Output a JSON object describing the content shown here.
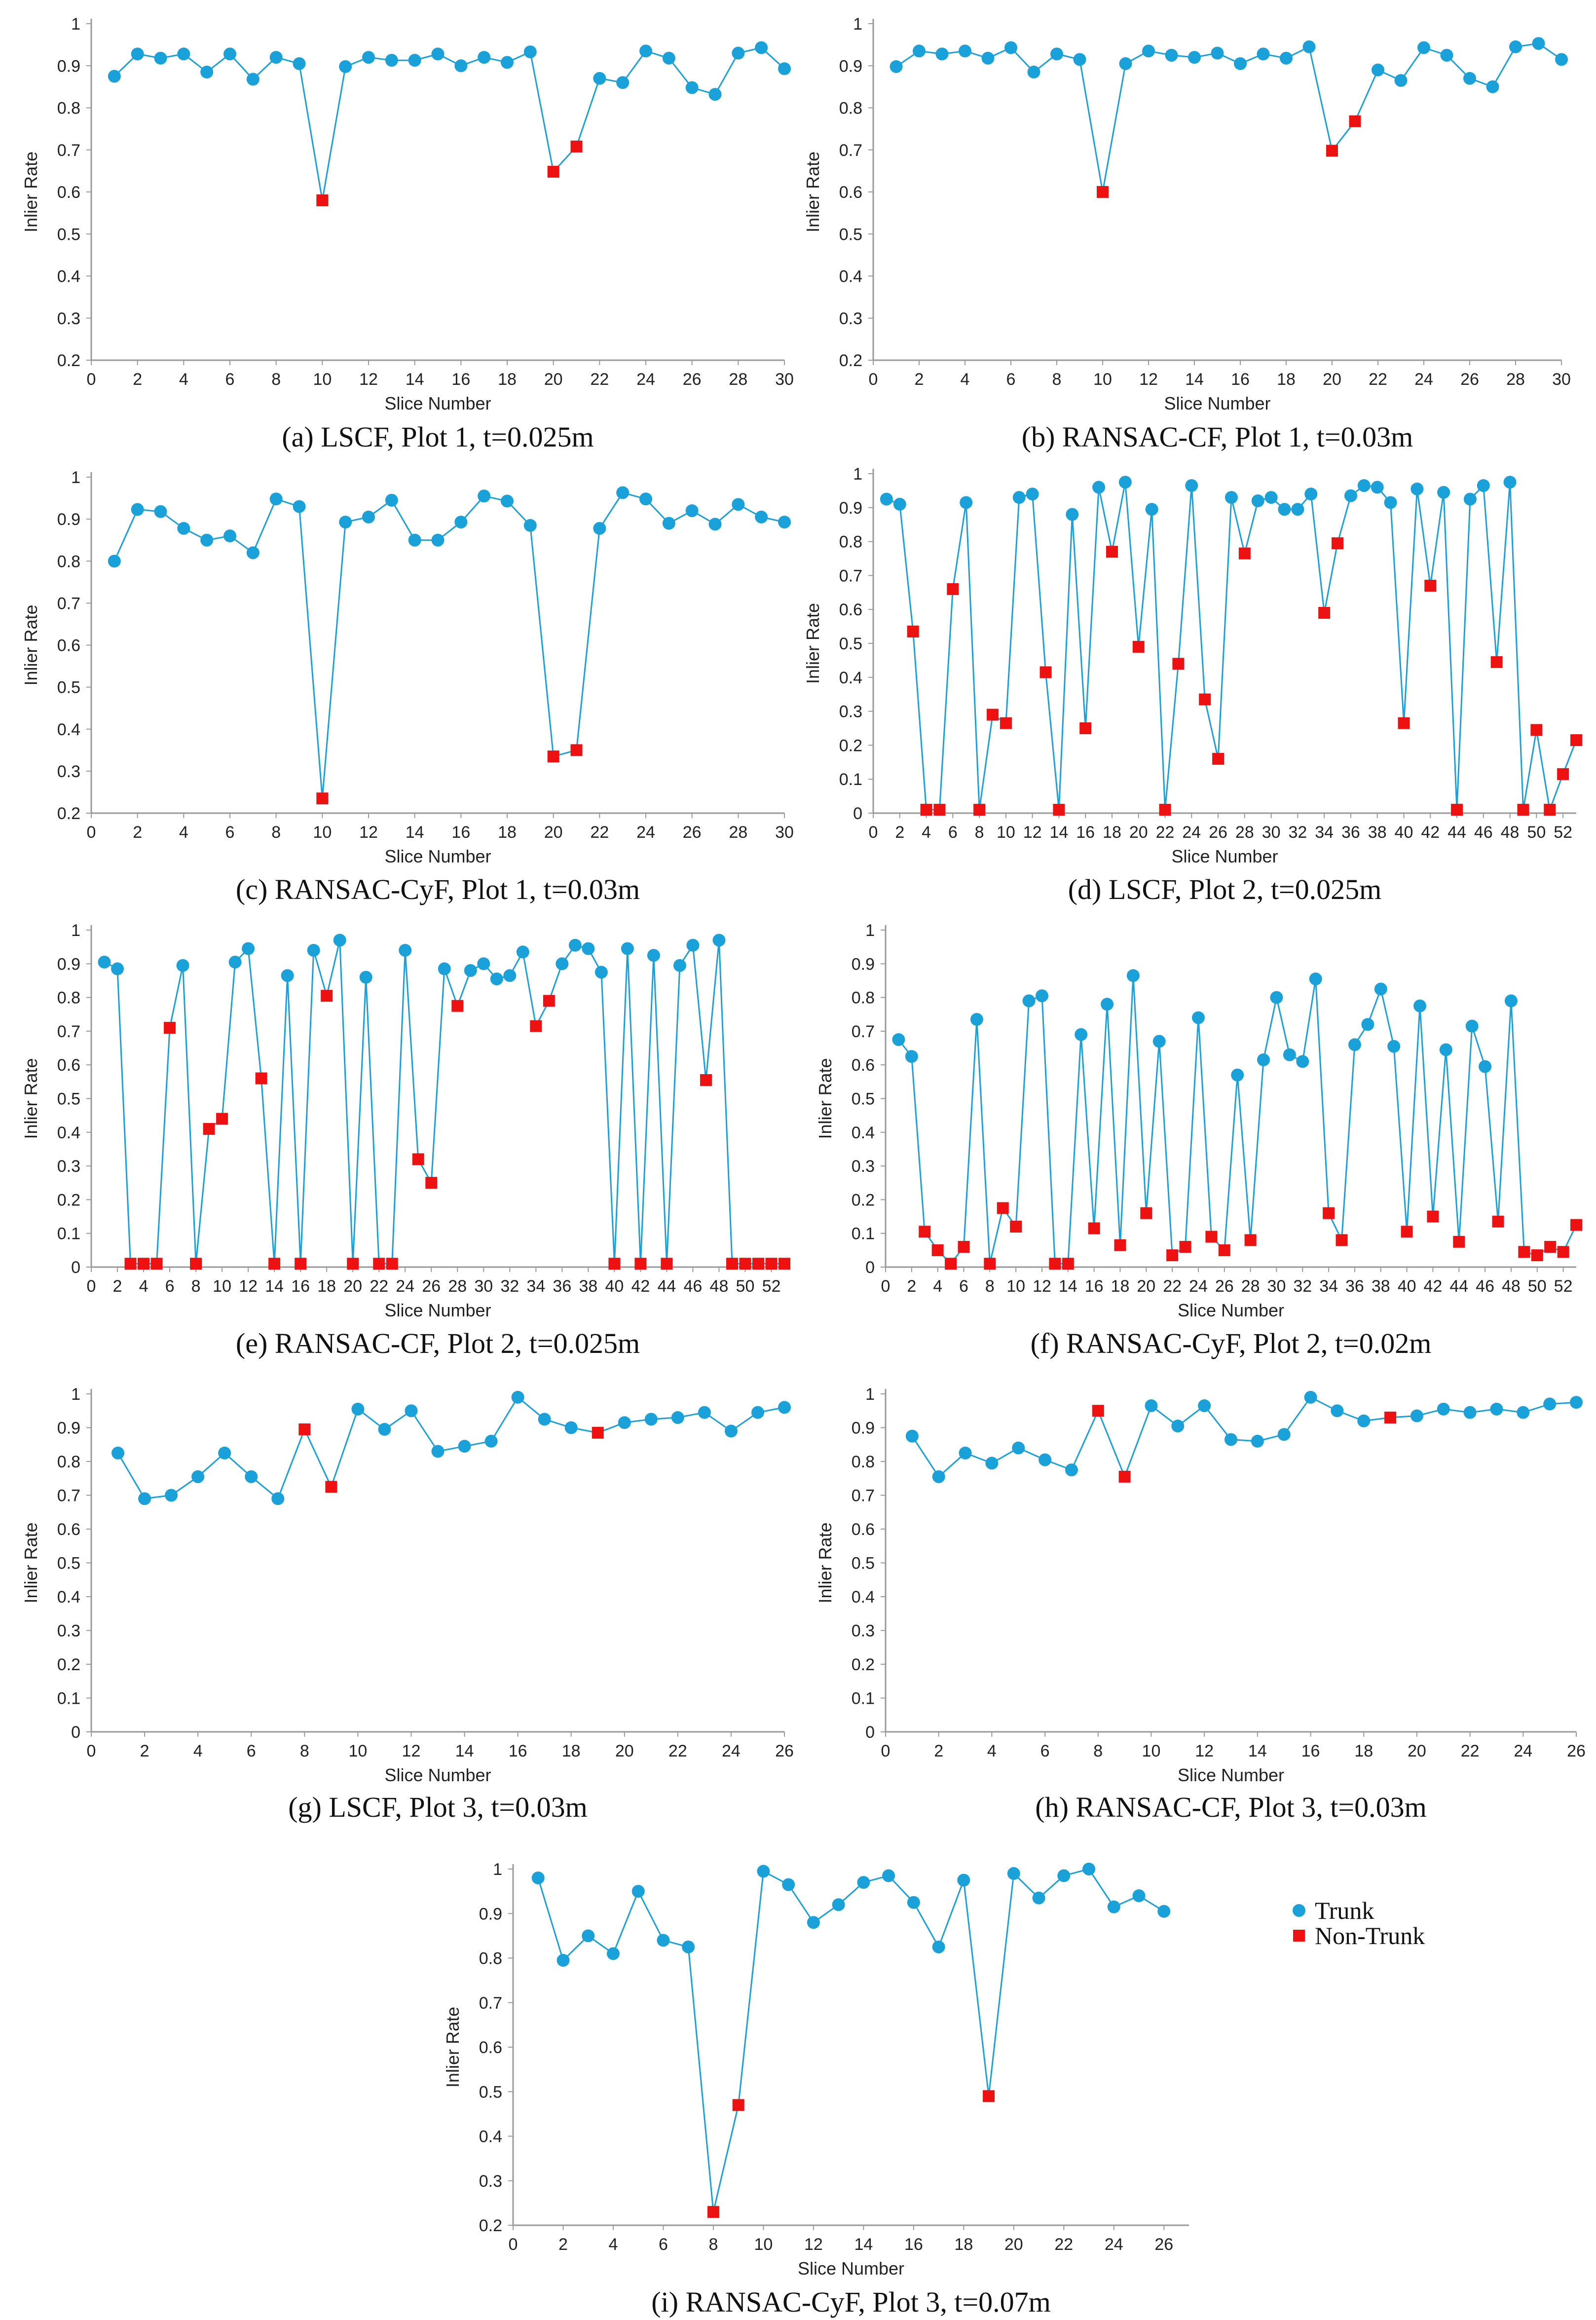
{
  "legend": {
    "trunk": "Trunk",
    "non_trunk": "Non-Trunk"
  },
  "colors": {
    "trunk": "#1aa1d9",
    "non_trunk": "#ee1111",
    "axis": "#999999"
  },
  "chart_data": [
    {
      "id": "a",
      "type": "line",
      "caption": "(a) LSCF, Plot 1, t=0.025m",
      "xlabel": "Slice Number",
      "ylabel": "Inlier Rate",
      "xlim": [
        0,
        30
      ],
      "xticks": [
        0,
        2,
        4,
        6,
        8,
        10,
        12,
        14,
        16,
        18,
        20,
        22,
        24,
        26,
        28,
        30
      ],
      "ylim": [
        0.2,
        1.0
      ],
      "yticks": [
        0.2,
        0.3,
        0.4,
        0.5,
        0.6,
        0.7,
        0.8,
        0.9,
        1
      ],
      "x": [
        1,
        2,
        3,
        4,
        5,
        6,
        7,
        8,
        9,
        10,
        11,
        12,
        13,
        14,
        15,
        16,
        17,
        18,
        19,
        20,
        21,
        22,
        23,
        24,
        25,
        26,
        27,
        28,
        29,
        30
      ],
      "y": [
        0.875,
        0.928,
        0.918,
        0.928,
        0.885,
        0.928,
        0.868,
        0.92,
        0.905,
        0.58,
        0.898,
        0.92,
        0.913,
        0.913,
        0.928,
        0.9,
        0.92,
        0.908,
        0.933,
        0.648,
        0.708,
        0.87,
        0.86,
        0.935,
        0.918,
        0.848,
        0.832,
        0.93,
        0.943,
        0.893
      ],
      "non_trunk": [
        10,
        20,
        21
      ]
    },
    {
      "id": "b",
      "type": "line",
      "caption": "(b) RANSAC-CF, Plot 1, t=0.03m",
      "xlabel": "Slice Number",
      "ylabel": "Inlier Rate",
      "xlim": [
        0,
        30
      ],
      "xticks": [
        0,
        2,
        4,
        6,
        8,
        10,
        12,
        14,
        16,
        18,
        20,
        22,
        24,
        26,
        28,
        30
      ],
      "ylim": [
        0.2,
        1.0
      ],
      "yticks": [
        0.2,
        0.3,
        0.4,
        0.5,
        0.6,
        0.7,
        0.8,
        0.9,
        1
      ],
      "x": [
        1,
        2,
        3,
        4,
        5,
        6,
        7,
        8,
        9,
        10,
        11,
        12,
        13,
        14,
        15,
        16,
        17,
        18,
        19,
        20,
        21,
        22,
        23,
        24,
        25,
        26,
        27,
        28,
        29,
        30
      ],
      "y": [
        0.898,
        0.935,
        0.928,
        0.935,
        0.918,
        0.943,
        0.885,
        0.928,
        0.915,
        0.6,
        0.905,
        0.935,
        0.925,
        0.92,
        0.93,
        0.905,
        0.928,
        0.918,
        0.945,
        0.698,
        0.768,
        0.89,
        0.865,
        0.943,
        0.925,
        0.87,
        0.85,
        0.945,
        0.953,
        0.915
      ],
      "non_trunk": [
        10,
        20,
        21
      ]
    },
    {
      "id": "c",
      "type": "line",
      "caption": "(c) RANSAC-CyF, Plot 1, t=0.03m",
      "xlabel": "Slice Number",
      "ylabel": "Inlier Rate",
      "xlim": [
        0,
        30
      ],
      "xticks": [
        0,
        2,
        4,
        6,
        8,
        10,
        12,
        14,
        16,
        18,
        20,
        22,
        24,
        26,
        28,
        30
      ],
      "ylim": [
        0.2,
        1.0
      ],
      "yticks": [
        0.2,
        0.3,
        0.4,
        0.5,
        0.6,
        0.7,
        0.8,
        0.9,
        1
      ],
      "x": [
        1,
        2,
        3,
        4,
        5,
        6,
        7,
        8,
        9,
        10,
        11,
        12,
        13,
        14,
        15,
        16,
        17,
        18,
        19,
        20,
        21,
        22,
        23,
        24,
        25,
        26,
        27,
        28,
        29,
        30
      ],
      "y": [
        0.8,
        0.923,
        0.918,
        0.878,
        0.85,
        0.86,
        0.82,
        0.948,
        0.93,
        0.235,
        0.893,
        0.905,
        0.945,
        0.85,
        0.85,
        0.893,
        0.955,
        0.943,
        0.885,
        0.335,
        0.35,
        0.878,
        0.963,
        0.948,
        0.89,
        0.92,
        0.888,
        0.935,
        0.905,
        0.893
      ],
      "non_trunk": [
        10,
        20,
        21
      ]
    },
    {
      "id": "d",
      "type": "line",
      "caption": "(d) LSCF, Plot 2, t=0.025m",
      "xlabel": "Slice Number",
      "ylabel": "Inlier Rate",
      "xlim": [
        0,
        53
      ],
      "xticks": [
        0,
        2,
        4,
        6,
        8,
        10,
        12,
        14,
        16,
        18,
        20,
        22,
        24,
        26,
        28,
        30,
        32,
        34,
        36,
        38,
        40,
        42,
        44,
        46,
        48,
        50,
        52
      ],
      "ylim": [
        0,
        1.0
      ],
      "yticks": [
        0,
        0.1,
        0.2,
        0.3,
        0.4,
        0.5,
        0.6,
        0.7,
        0.8,
        0.9,
        1
      ],
      "x": [
        1,
        2,
        3,
        4,
        5,
        6,
        7,
        8,
        9,
        10,
        11,
        12,
        13,
        14,
        15,
        16,
        17,
        18,
        19,
        20,
        21,
        22,
        23,
        24,
        25,
        26,
        27,
        28,
        29,
        30,
        31,
        32,
        33,
        34,
        35,
        36,
        37,
        38,
        39,
        40,
        41,
        42,
        43,
        44,
        45,
        46,
        47,
        48,
        49,
        50,
        51,
        52,
        53
      ],
      "y": [
        0.925,
        0.91,
        0.535,
        0.01,
        0.01,
        0.66,
        0.915,
        0.01,
        0.29,
        0.265,
        0.93,
        0.94,
        0.415,
        0.01,
        0.88,
        0.25,
        0.96,
        0.77,
        0.975,
        0.49,
        0.895,
        0.01,
        0.44,
        0.965,
        0.335,
        0.16,
        0.93,
        0.765,
        0.92,
        0.93,
        0.895,
        0.895,
        0.94,
        0.59,
        0.795,
        0.935,
        0.965,
        0.96,
        0.915,
        0.265,
        0.955,
        0.67,
        0.945,
        0.01,
        0.925,
        0.965,
        0.445,
        0.975,
        0.01,
        0.245,
        0.01,
        0.115,
        0.215
      ],
      "non_trunk": [
        3,
        4,
        5,
        6,
        8,
        9,
        10,
        13,
        14,
        16,
        18,
        20,
        22,
        23,
        25,
        26,
        28,
        34,
        35,
        40,
        42,
        44,
        47,
        49,
        50,
        51,
        52,
        53
      ]
    },
    {
      "id": "e",
      "type": "line",
      "caption": "(e) RANSAC-CF, Plot 2, t=0.025m",
      "xlabel": "Slice Number",
      "ylabel": "Inlier Rate",
      "xlim": [
        0,
        53
      ],
      "xticks": [
        0,
        2,
        4,
        6,
        8,
        10,
        12,
        14,
        16,
        18,
        20,
        22,
        24,
        26,
        28,
        30,
        32,
        34,
        36,
        38,
        40,
        42,
        44,
        46,
        48,
        50,
        52
      ],
      "ylim": [
        0,
        1.0
      ],
      "yticks": [
        0,
        0.1,
        0.2,
        0.3,
        0.4,
        0.5,
        0.6,
        0.7,
        0.8,
        0.9,
        1
      ],
      "x": [
        1,
        2,
        3,
        4,
        5,
        6,
        7,
        8,
        9,
        10,
        11,
        12,
        13,
        14,
        15,
        16,
        17,
        18,
        19,
        20,
        21,
        22,
        23,
        24,
        25,
        26,
        27,
        28,
        29,
        30,
        31,
        32,
        33,
        34,
        35,
        36,
        37,
        38,
        39,
        40,
        41,
        42,
        43,
        44,
        45,
        46,
        47,
        48,
        49,
        50,
        51,
        52,
        53
      ],
      "y": [
        0.905,
        0.885,
        0.01,
        0.01,
        0.01,
        0.71,
        0.895,
        0.01,
        0.41,
        0.44,
        0.905,
        0.945,
        0.56,
        0.01,
        0.865,
        0.01,
        0.94,
        0.805,
        0.97,
        0.01,
        0.86,
        0.01,
        0.01,
        0.94,
        0.32,
        0.25,
        0.885,
        0.775,
        0.88,
        0.9,
        0.855,
        0.865,
        0.935,
        0.715,
        0.79,
        0.9,
        0.955,
        0.945,
        0.875,
        0.01,
        0.945,
        0.01,
        0.925,
        0.01,
        0.895,
        0.955,
        0.555,
        0.97,
        0.01,
        0.01,
        0.01,
        0.01,
        0.01
      ],
      "non_trunk": [
        3,
        4,
        5,
        6,
        8,
        9,
        10,
        13,
        14,
        16,
        18,
        20,
        22,
        23,
        25,
        26,
        28,
        34,
        35,
        40,
        42,
        44,
        47,
        49,
        50,
        51,
        52,
        53
      ]
    },
    {
      "id": "f",
      "type": "line",
      "caption": "(f) RANSAC-CyF, Plot 2, t=0.02m",
      "xlabel": "Slice Number",
      "ylabel": "Inlier Rate",
      "xlim": [
        0,
        53
      ],
      "xticks": [
        0,
        2,
        4,
        6,
        8,
        10,
        12,
        14,
        16,
        18,
        20,
        22,
        24,
        26,
        28,
        30,
        32,
        34,
        36,
        38,
        40,
        42,
        44,
        46,
        48,
        50,
        52
      ],
      "ylim": [
        0,
        1.0
      ],
      "yticks": [
        0,
        0.1,
        0.2,
        0.3,
        0.4,
        0.5,
        0.6,
        0.7,
        0.8,
        0.9,
        1
      ],
      "x": [
        1,
        2,
        3,
        4,
        5,
        6,
        7,
        8,
        9,
        10,
        11,
        12,
        13,
        14,
        15,
        16,
        17,
        18,
        19,
        20,
        21,
        22,
        23,
        24,
        25,
        26,
        27,
        28,
        29,
        30,
        31,
        32,
        33,
        34,
        35,
        36,
        37,
        38,
        39,
        40,
        41,
        42,
        43,
        44,
        45,
        46,
        47,
        48,
        49,
        50,
        51,
        52,
        53
      ],
      "y": [
        0.675,
        0.625,
        0.105,
        0.05,
        0.01,
        0.06,
        0.735,
        0.01,
        0.175,
        0.12,
        0.79,
        0.805,
        0.01,
        0.01,
        0.69,
        0.115,
        0.78,
        0.065,
        0.865,
        0.16,
        0.67,
        0.035,
        0.06,
        0.74,
        0.09,
        0.05,
        0.57,
        0.08,
        0.615,
        0.8,
        0.63,
        0.61,
        0.855,
        0.16,
        0.08,
        0.66,
        0.72,
        0.825,
        0.655,
        0.105,
        0.775,
        0.15,
        0.645,
        0.075,
        0.715,
        0.595,
        0.135,
        0.79,
        0.045,
        0.035,
        0.06,
        0.045,
        0.125
      ],
      "non_trunk": [
        3,
        4,
        5,
        6,
        8,
        9,
        10,
        13,
        14,
        16,
        18,
        20,
        22,
        23,
        25,
        26,
        28,
        34,
        35,
        40,
        42,
        44,
        47,
        49,
        50,
        51,
        52,
        53
      ]
    },
    {
      "id": "g",
      "type": "line",
      "caption": "(g) LSCF, Plot 3, t=0.03m",
      "xlabel": "Slice Number",
      "ylabel": "Inlier Rate",
      "xlim": [
        0,
        26
      ],
      "xticks": [
        0,
        2,
        4,
        6,
        8,
        10,
        12,
        14,
        16,
        18,
        20,
        22,
        24,
        26
      ],
      "ylim": [
        0,
        1.0
      ],
      "yticks": [
        0,
        0.1,
        0.2,
        0.3,
        0.4,
        0.5,
        0.6,
        0.7,
        0.8,
        0.9,
        1
      ],
      "x": [
        1,
        2,
        3,
        4,
        5,
        6,
        7,
        8,
        9,
        10,
        11,
        12,
        13,
        14,
        15,
        16,
        17,
        18,
        19,
        20,
        21,
        22,
        23,
        24,
        25,
        26
      ],
      "y": [
        0.825,
        0.69,
        0.7,
        0.755,
        0.825,
        0.755,
        0.69,
        0.895,
        0.725,
        0.955,
        0.895,
        0.95,
        0.83,
        0.845,
        0.86,
        0.99,
        0.925,
        0.9,
        0.885,
        0.915,
        0.925,
        0.93,
        0.945,
        0.89,
        0.945,
        0.96
      ],
      "non_trunk": [
        8,
        9,
        19
      ]
    },
    {
      "id": "h",
      "type": "line",
      "caption": "(h) RANSAC-CF, Plot 3, t=0.03m",
      "xlabel": "Slice Number",
      "ylabel": "Inlier Rate",
      "xlim": [
        0,
        26
      ],
      "xticks": [
        0,
        2,
        4,
        6,
        8,
        10,
        12,
        14,
        16,
        18,
        20,
        22,
        24,
        26
      ],
      "ylim": [
        0,
        1.0
      ],
      "yticks": [
        0,
        0.1,
        0.2,
        0.3,
        0.4,
        0.5,
        0.6,
        0.7,
        0.8,
        0.9,
        1
      ],
      "x": [
        1,
        2,
        3,
        4,
        5,
        6,
        7,
        8,
        9,
        10,
        11,
        12,
        13,
        14,
        15,
        16,
        17,
        18,
        19,
        20,
        21,
        22,
        23,
        24,
        25,
        26
      ],
      "y": [
        0.875,
        0.755,
        0.825,
        0.795,
        0.84,
        0.805,
        0.775,
        0.95,
        0.755,
        0.965,
        0.905,
        0.965,
        0.865,
        0.86,
        0.88,
        0.99,
        0.95,
        0.92,
        0.93,
        0.935,
        0.955,
        0.945,
        0.955,
        0.945,
        0.97,
        0.975
      ],
      "non_trunk": [
        8,
        9,
        19
      ]
    },
    {
      "id": "i",
      "type": "line",
      "caption": "(i) RANSAC-CyF, Plot 3, t=0.07m",
      "xlabel": "Slice Number",
      "ylabel": "Inlier Rate",
      "xlim": [
        0,
        27
      ],
      "xticks": [
        0,
        2,
        4,
        6,
        8,
        10,
        12,
        14,
        16,
        18,
        20,
        22,
        24,
        26
      ],
      "ylim": [
        0.2,
        1.0
      ],
      "yticks": [
        0.2,
        0.3,
        0.4,
        0.5,
        0.6,
        0.7,
        0.8,
        0.9,
        1
      ],
      "x": [
        1,
        2,
        3,
        4,
        5,
        6,
        7,
        8,
        9,
        10,
        11,
        12,
        13,
        14,
        15,
        16,
        17,
        18,
        19,
        20,
        21,
        22,
        23,
        24,
        25,
        26
      ],
      "y": [
        0.98,
        0.795,
        0.85,
        0.81,
        0.95,
        0.84,
        0.825,
        0.23,
        0.47,
        0.995,
        0.965,
        0.88,
        0.92,
        0.97,
        0.985,
        0.925,
        0.825,
        0.975,
        0.49,
        0.99,
        0.935,
        0.985,
        1.0,
        0.915,
        0.94,
        0.905
      ],
      "non_trunk": [
        8,
        9,
        19
      ]
    }
  ]
}
